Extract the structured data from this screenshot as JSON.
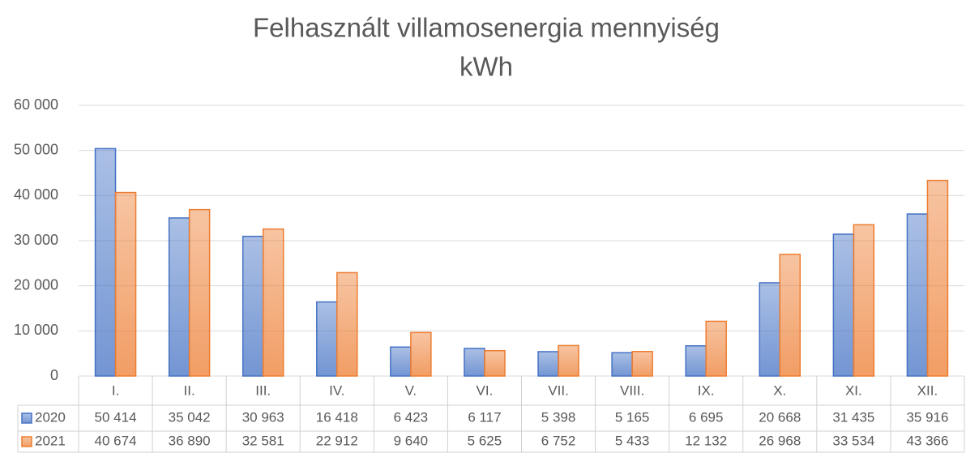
{
  "chart_data": {
    "type": "bar",
    "title": "Felhasznált villamosenergia mennyiség",
    "subtitle": "kWh",
    "categories": [
      "I.",
      "II.",
      "III.",
      "IV.",
      "V.",
      "VI.",
      "VII.",
      "VIII.",
      "IX.",
      "X.",
      "XI.",
      "XII."
    ],
    "series": [
      {
        "name": "2020",
        "color": "#4472c4",
        "values": [
          50414,
          35042,
          30963,
          16418,
          6423,
          6117,
          5398,
          5165,
          6695,
          20668,
          31435,
          35916
        ],
        "value_labels": [
          "50 414",
          "35 042",
          "30 963",
          "16 418",
          "6 423",
          "6 117",
          "5 398",
          "5 165",
          "6 695",
          "20 668",
          "31 435",
          "35 916"
        ]
      },
      {
        "name": "2021",
        "color": "#ed7d31",
        "values": [
          40674,
          36890,
          32581,
          22912,
          9640,
          5625,
          6752,
          5433,
          12132,
          26968,
          33534,
          43366
        ],
        "value_labels": [
          "40 674",
          "36 890",
          "32 581",
          "22 912",
          "9 640",
          "5 625",
          "6 752",
          "5 433",
          "12 132",
          "26 968",
          "33 534",
          "43 366"
        ]
      }
    ],
    "ylim": [
      0,
      60000
    ],
    "yticks": [
      0,
      {
        "value": 10000,
        "label": "10 000"
      },
      {
        "value": 20000,
        "label": "20 000"
      },
      {
        "value": 30000,
        "label": "30 000"
      },
      {
        "value": 40000,
        "label": "40 000"
      },
      {
        "value": 50000,
        "label": "50 000"
      },
      {
        "value": 60000,
        "label": "60 000"
      }
    ],
    "grid": true,
    "data_table": true
  }
}
